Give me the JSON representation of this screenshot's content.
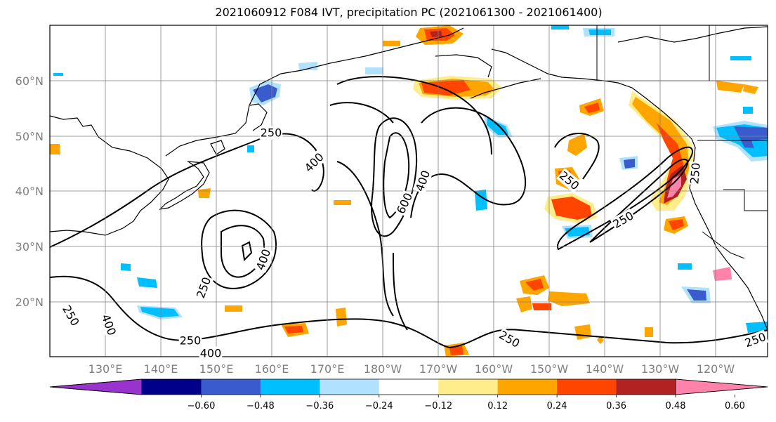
{
  "title": "2021060912 F084 IVT, precipitation PC (2021061300 - 2021061400)",
  "map": {
    "lat_labels": [
      "60°N",
      "50°N",
      "40°N",
      "30°N",
      "20°N"
    ],
    "lon_labels": [
      "130°E",
      "140°E",
      "150°E",
      "160°E",
      "170°E",
      "180°W",
      "170°W",
      "160°W",
      "150°W",
      "140°W",
      "130°W",
      "120°W"
    ],
    "contour_labels": [
      "250",
      "400",
      "400",
      "600",
      "250",
      "250",
      "400",
      "250",
      "400",
      "250",
      "250",
      "400",
      "250",
      "250",
      "250"
    ],
    "grid": true
  },
  "colorbar": {
    "colors": [
      "#9a32cd",
      "#00008b",
      "#3a5bcd",
      "#00bfff",
      "#b0e2ff",
      "#ffffff",
      "#ffec8b",
      "#ffa500",
      "#ff4500",
      "#b22222",
      "#ff82ab"
    ],
    "tick_labels": [
      "−0.60",
      "−0.48",
      "−0.36",
      "−0.24",
      "−0.12",
      "0.12",
      "0.24",
      "0.36",
      "0.48",
      "0.60"
    ]
  }
}
